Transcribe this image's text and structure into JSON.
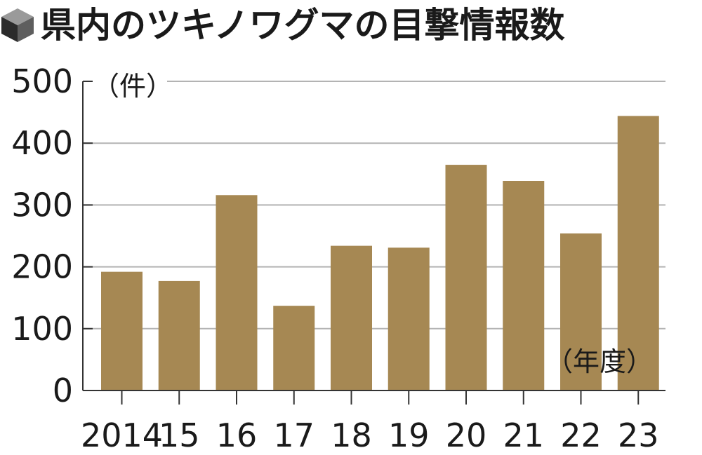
{
  "chart_data": {
    "type": "bar",
    "title": "県内のツキノワグマの目撃情報数",
    "y_unit": "（件）",
    "x_unit": "（年度）",
    "categories": [
      "2014",
      "15",
      "16",
      "17",
      "18",
      "19",
      "20",
      "21",
      "22",
      "23"
    ],
    "values": [
      192,
      177,
      316,
      137,
      234,
      231,
      365,
      339,
      254,
      444
    ],
    "yticks": [
      0,
      100,
      200,
      300,
      400,
      500
    ],
    "ylim": [
      0,
      500
    ],
    "grid": true,
    "legend": "none",
    "colors": {
      "bar": "#a68853",
      "grid": "#b3b3b3",
      "axis": "#333333",
      "icon_top": "#9a9a9a",
      "icon_left": "#2b2b2b",
      "icon_right": "#5e5e5e"
    },
    "icon": "cube-icon"
  }
}
